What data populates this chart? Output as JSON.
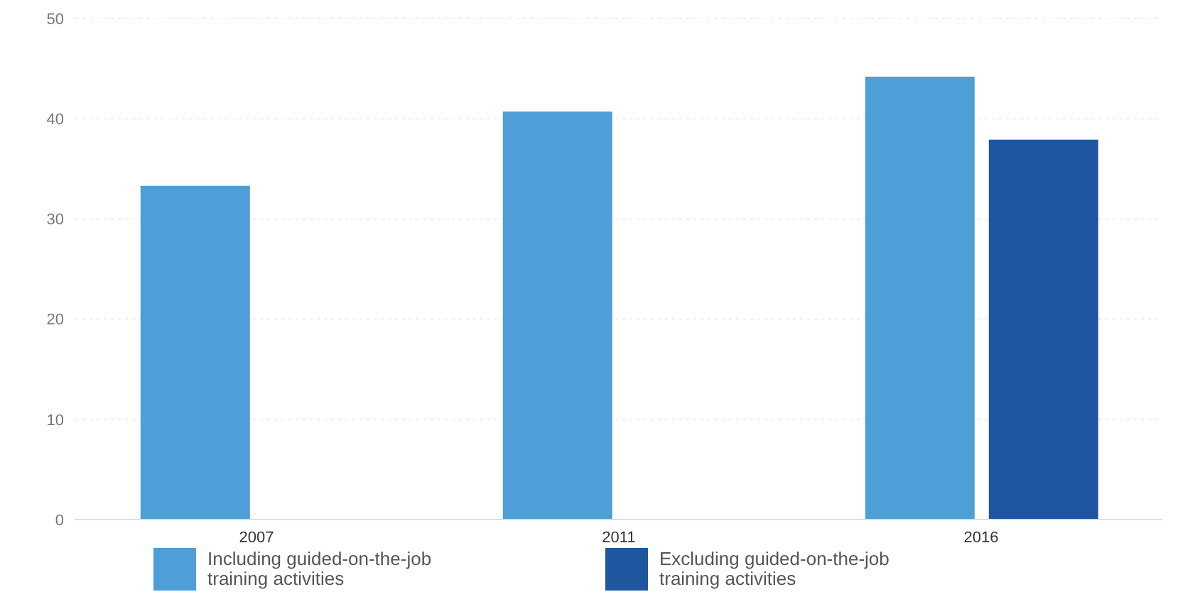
{
  "chart_data": {
    "type": "bar",
    "categories": [
      "2007",
      "2011",
      "2016"
    ],
    "series": [
      {
        "name": "Including guided-on-the-job training activities",
        "color": "#4e9ed8",
        "values": [
          33.3,
          40.7,
          44.2
        ]
      },
      {
        "name": "Excluding guided-on-the-job training activities",
        "color": "#1f56a0",
        "values": [
          null,
          null,
          37.9
        ]
      }
    ],
    "ylim": [
      0,
      50
    ],
    "yticks": [
      0,
      10,
      20,
      30,
      40,
      50
    ],
    "grid": "y",
    "legend": "bottom"
  }
}
